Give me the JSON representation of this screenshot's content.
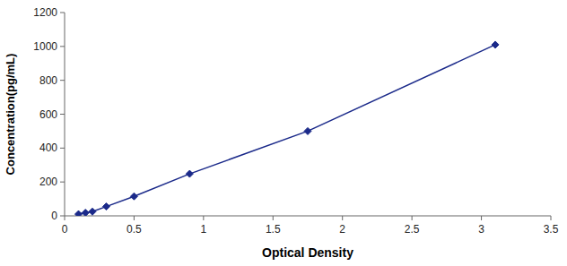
{
  "chart_data": {
    "type": "line",
    "x": [
      0.1,
      0.15,
      0.2,
      0.3,
      0.5,
      0.9,
      1.75,
      3.1
    ],
    "values": [
      10,
      18,
      25,
      55,
      115,
      248,
      500,
      1010
    ],
    "color": "#1B2A8A",
    "marker": "diamond",
    "line_style": "solid",
    "xlabel": "Optical Density",
    "ylabel": "Concentration(pg/mL)",
    "xlim": [
      0,
      3.5
    ],
    "ylim": [
      0,
      1200
    ],
    "xticks": [
      0,
      0.5,
      1,
      1.5,
      2,
      2.5,
      3,
      3.5
    ],
    "yticks": [
      0,
      200,
      400,
      600,
      800,
      1000,
      1200
    ],
    "grid": false
  }
}
